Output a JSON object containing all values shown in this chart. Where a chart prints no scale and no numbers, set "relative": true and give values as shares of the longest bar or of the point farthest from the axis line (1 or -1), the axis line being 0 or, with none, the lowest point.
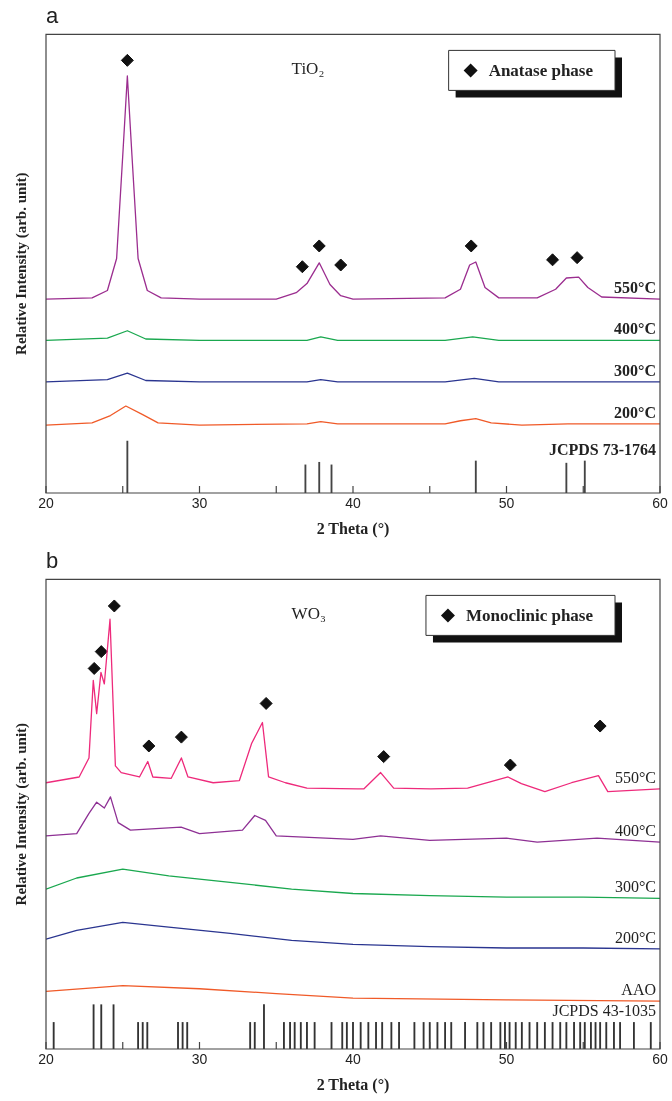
{
  "chart_data": [
    {
      "type": "line",
      "title": "a",
      "xlabel": "2 Theta (°)",
      "ylabel": "Relative Intensity (arb. unit)",
      "relative": true,
      "legend": "top right",
      "annotations": [
        "TiO₂"
      ],
      "xlim": [
        20,
        60
      ],
      "xticks": [
        20,
        {
          "value": 25,
          "label": null
        },
        30,
        {
          "value": 35,
          "label": null
        },
        40,
        {
          "value": 45,
          "label": null
        },
        50,
        {
          "value": 55,
          "label": null
        },
        60
      ],
      "series": [
        {
          "name": "550°C",
          "color": "#9b2d8f",
          "x": [
            20,
            23,
            24,
            24.6,
            25.0,
            25.3,
            25.6,
            26.0,
            26.6,
            27.5,
            30,
            35,
            36.3,
            37.0,
            37.8,
            38.5,
            39.2,
            40,
            46,
            47.0,
            47.6,
            48.0,
            48.6,
            49.5,
            52,
            53.2,
            53.9,
            54.7,
            55.3,
            56.2,
            60
          ],
          "values": [
            0.448,
            0.451,
            0.468,
            0.542,
            0.78,
            0.964,
            0.78,
            0.542,
            0.468,
            0.451,
            0.448,
            0.448,
            0.463,
            0.484,
            0.532,
            0.482,
            0.456,
            0.448,
            0.451,
            0.471,
            0.527,
            0.534,
            0.475,
            0.451,
            0.451,
            0.471,
            0.497,
            0.499,
            0.475,
            0.453,
            0.448
          ]
        },
        {
          "name": "400°C",
          "color": "#1aa84f",
          "x": [
            20,
            24,
            25.3,
            26.5,
            30,
            37,
            37.9,
            39,
            46,
            47.8,
            49.5,
            60
          ],
          "values": [
            0.353,
            0.358,
            0.375,
            0.356,
            0.353,
            0.353,
            0.361,
            0.353,
            0.353,
            0.361,
            0.353,
            0.353
          ]
        },
        {
          "name": "300°C",
          "color": "#2a3590",
          "x": [
            20,
            24,
            25.3,
            26.5,
            30,
            37,
            37.9,
            39,
            46,
            47.9,
            49.5,
            60
          ],
          "values": [
            0.257,
            0.262,
            0.277,
            0.26,
            0.257,
            0.257,
            0.262,
            0.257,
            0.257,
            0.265,
            0.257,
            0.257
          ]
        },
        {
          "name": "200°C",
          "color": "#f05a28",
          "x": [
            20,
            23,
            24.2,
            25.2,
            26.3,
            27.3,
            30,
            37,
            37.9,
            39,
            46,
            47,
            48,
            49,
            51,
            54,
            56,
            60
          ],
          "values": [
            0.157,
            0.162,
            0.179,
            0.201,
            0.181,
            0.162,
            0.157,
            0.16,
            0.165,
            0.16,
            0.16,
            0.167,
            0.172,
            0.162,
            0.157,
            0.16,
            0.16,
            0.16
          ]
        },
        {
          "name": "JCPDS 73-1764",
          "type": "bar",
          "color": "#444444",
          "x": [
            25.3,
            36.9,
            37.8,
            38.6,
            48.0,
            53.9,
            55.1
          ],
          "values": [
            0.12,
            0.065,
            0.071,
            0.065,
            0.074,
            0.069,
            0.074
          ]
        },
        {
          "name": "Anatase phase",
          "type": "scatter",
          "marker": "diamond",
          "color": "#111111",
          "x": [
            25.3,
            36.7,
            37.8,
            39.2,
            47.7,
            53.0,
            54.6
          ],
          "values": [
            1.0,
            0.523,
            0.571,
            0.527,
            0.571,
            0.539,
            0.544
          ]
        }
      ]
    },
    {
      "type": "line",
      "title": "b",
      "xlabel": "2 Theta (°)",
      "ylabel": "Relative Intensity (arb. unit)",
      "relative": true,
      "legend": "top right",
      "annotations": [
        "WO₃"
      ],
      "xlim": [
        20,
        60
      ],
      "xticks": [
        20,
        {
          "value": 25,
          "label": null
        },
        30,
        {
          "value": 35,
          "label": null
        },
        40,
        {
          "value": 45,
          "label": null
        },
        50,
        {
          "value": 55,
          "label": null
        },
        60
      ],
      "series": [
        {
          "name": "550°C",
          "color": "#ee2a7b",
          "x": [
            20,
            22.16,
            22.8,
            23.08,
            23.3,
            23.58,
            23.8,
            24.17,
            24.52,
            24.9,
            26.09,
            26.63,
            26.96,
            28.16,
            28.82,
            29.25,
            30.89,
            32.6,
            33.4,
            34.1,
            34.5,
            35.6,
            37.0,
            40.3,
            40.7,
            41.8,
            42.65,
            45.07,
            47.47,
            50.1,
            50.97,
            52.5,
            54.24,
            55.99,
            56.6,
            60
          ],
          "values": [
            0.601,
            0.614,
            0.657,
            0.832,
            0.757,
            0.85,
            0.824,
            0.97,
            0.639,
            0.624,
            0.614,
            0.649,
            0.614,
            0.611,
            0.657,
            0.614,
            0.601,
            0.606,
            0.69,
            0.737,
            0.614,
            0.601,
            0.589,
            0.587,
            0.587,
            0.624,
            0.589,
            0.587,
            0.589,
            0.614,
            0.599,
            0.581,
            0.601,
            0.617,
            0.581,
            0.587
          ]
        },
        {
          "name": "400°C",
          "color": "#8e3094",
          "x": [
            20,
            22,
            22.8,
            23.3,
            23.8,
            24.2,
            24.7,
            25.5,
            28.8,
            30,
            32.8,
            33.6,
            34.3,
            35,
            40,
            41.8,
            45,
            50,
            52,
            55.9,
            60
          ],
          "values": [
            0.481,
            0.486,
            0.532,
            0.557,
            0.544,
            0.569,
            0.511,
            0.494,
            0.501,
            0.486,
            0.494,
            0.527,
            0.516,
            0.481,
            0.473,
            0.481,
            0.471,
            0.476,
            0.467,
            0.476,
            0.467
          ]
        },
        {
          "name": "300°C",
          "color": "#1aa84f",
          "x": [
            20,
            22,
            25,
            28,
            32,
            36,
            40,
            45,
            50,
            55,
            60
          ],
          "values": [
            0.361,
            0.386,
            0.406,
            0.391,
            0.376,
            0.361,
            0.351,
            0.346,
            0.343,
            0.343,
            0.34
          ]
        },
        {
          "name": "200°C",
          "color": "#2a3590",
          "x": [
            20,
            22,
            25,
            28,
            32,
            36,
            40,
            45,
            50,
            55,
            60
          ],
          "values": [
            0.248,
            0.268,
            0.286,
            0.275,
            0.261,
            0.245,
            0.236,
            0.231,
            0.228,
            0.228,
            0.226
          ]
        },
        {
          "name": "AAO",
          "color": "#f05a28",
          "x": [
            20,
            25,
            30,
            35,
            40,
            50,
            60
          ],
          "values": [
            0.13,
            0.143,
            0.136,
            0.125,
            0.115,
            0.111,
            0.108
          ]
        },
        {
          "name": "JCPDS 43-1035",
          "type": "bar",
          "color": "#333333",
          "x": [
            20.5,
            23.1,
            23.6,
            24.4,
            26.0,
            26.3,
            26.6,
            28.6,
            28.9,
            29.2,
            33.3,
            33.6,
            34.2,
            35.5,
            35.9,
            36.2,
            36.6,
            37.0,
            37.5,
            38.6,
            39.3,
            39.6,
            40.0,
            40.5,
            41.0,
            41.5,
            41.9,
            42.5,
            43.0,
            44.0,
            44.6,
            45.0,
            45.5,
            46.0,
            46.4,
            47.3,
            48.1,
            48.5,
            49.0,
            49.6,
            49.9,
            50.2,
            50.6,
            51.0,
            51.5,
            52.0,
            52.5,
            53.0,
            53.5,
            53.9,
            54.4,
            54.8,
            55.1,
            55.5,
            55.8,
            56.1,
            56.5,
            57.0,
            57.4,
            58.3,
            59.4
          ],
          "values": [
            0.06,
            0.1,
            0.1,
            0.1,
            0.06,
            0.06,
            0.06,
            0.06,
            0.06,
            0.06,
            0.06,
            0.06,
            0.1,
            0.06,
            0.06,
            0.06,
            0.06,
            0.06,
            0.06,
            0.06,
            0.06,
            0.06,
            0.06,
            0.06,
            0.06,
            0.06,
            0.06,
            0.06,
            0.06,
            0.06,
            0.06,
            0.06,
            0.06,
            0.06,
            0.06,
            0.06,
            0.06,
            0.06,
            0.06,
            0.06,
            0.06,
            0.06,
            0.06,
            0.06,
            0.06,
            0.06,
            0.06,
            0.06,
            0.06,
            0.06,
            0.06,
            0.06,
            0.06,
            0.06,
            0.06,
            0.06,
            0.06,
            0.06,
            0.06,
            0.06,
            0.06
          ]
        },
        {
          "name": "Monoclinic phase",
          "type": "scatter",
          "marker": "diamond",
          "color": "#111111",
          "x": [
            23.14,
            23.6,
            24.45,
            26.7,
            28.82,
            34.34,
            42.0,
            50.25,
            56.1
          ],
          "values": [
            0.859,
            0.897,
            1.0,
            0.684,
            0.704,
            0.78,
            0.66,
            0.641,
            0.729
          ]
        }
      ]
    }
  ]
}
